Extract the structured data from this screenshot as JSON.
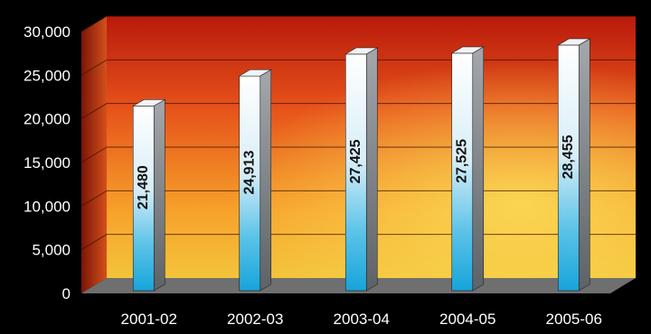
{
  "chart_data": {
    "type": "bar",
    "title": "",
    "xlabel": "",
    "ylabel": "",
    "categories": [
      "2001-02",
      "2002-03",
      "2003-04",
      "2004-05",
      "2005-06"
    ],
    "values": [
      21480,
      24913,
      27425,
      27525,
      28455
    ],
    "value_labels": [
      "21,480",
      "24,913",
      "27,425",
      "27,525",
      "28,455"
    ],
    "ylim": [
      0,
      30000
    ],
    "yticks": [
      0,
      5000,
      10000,
      15000,
      20000,
      25000,
      30000
    ],
    "ytick_labels": [
      "0",
      "5,000",
      "10,000",
      "15,000",
      "20,000",
      "25,000",
      "30,000"
    ],
    "grid": true,
    "colors": {
      "background": "#000000",
      "wall_dark": "#c2200e",
      "wall_mid": "#ec5a1a",
      "wall_light": "#f8c43c",
      "floor": "#6f6f6f",
      "bar_top": "#ffffff",
      "bar_bottom": "#1aa7db",
      "bar_side": "#8a8f94"
    }
  }
}
